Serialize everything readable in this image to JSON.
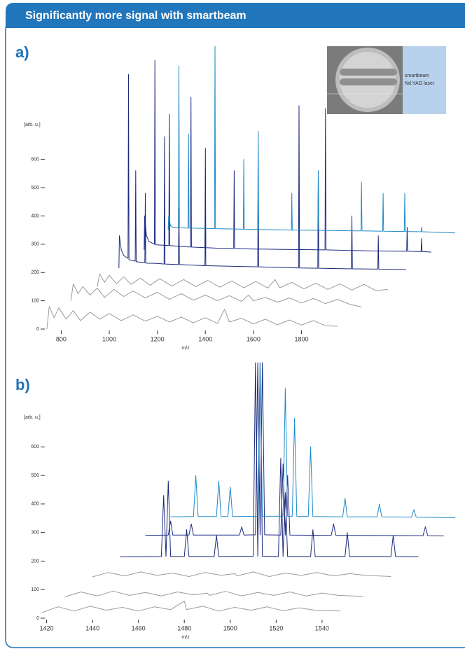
{
  "title": "Significantly more signal with smartbeam",
  "chart_data": [
    {
      "type": "line",
      "label": "a)",
      "ylabel": "[arb. u.]",
      "xlabel": "m/z",
      "inset_labels": [
        "smartbeam",
        "Nd:YAG laser"
      ],
      "xlim": [
        720,
        2440
      ],
      "ylim": [
        0,
        1010
      ],
      "xticks": [
        800,
        1000,
        1200,
        1400,
        1600,
        1800
      ],
      "yticks": [
        0,
        100,
        200,
        300,
        400,
        500,
        600
      ],
      "series": [
        {
          "color": "#9a9a9a",
          "x": [
            740,
            750,
            770,
            790,
            820,
            850,
            880,
            920,
            960,
            1000,
            1050,
            1100,
            1150,
            1200,
            1250,
            1300,
            1350,
            1400,
            1450,
            1480,
            1500,
            1550,
            1600,
            1650,
            1700,
            1750,
            1800,
            1850,
            1900,
            1950
          ],
          "values": [
            0,
            80,
            40,
            75,
            35,
            65,
            30,
            60,
            35,
            55,
            30,
            50,
            28,
            45,
            25,
            42,
            22,
            40,
            20,
            70,
            25,
            38,
            18,
            35,
            15,
            32,
            14,
            30,
            12,
            10
          ]
        },
        {
          "color": "#9a9a9a",
          "x": [
            840,
            850,
            870,
            890,
            920,
            950,
            980,
            1020,
            1060,
            1100,
            1150,
            1200,
            1250,
            1300,
            1350,
            1400,
            1450,
            1500,
            1550,
            1580,
            1600,
            1650,
            1700,
            1750,
            1800,
            1850,
            1900,
            1950,
            2000,
            2050
          ],
          "values": [
            100,
            160,
            125,
            150,
            120,
            145,
            112,
            140,
            115,
            135,
            110,
            130,
            105,
            125,
            102,
            120,
            100,
            118,
            98,
            120,
            100,
            112,
            95,
            110,
            92,
            108,
            90,
            105,
            88,
            78
          ]
        },
        {
          "color": "#9a9a9a",
          "x": [
            950,
            960,
            980,
            1000,
            1030,
            1060,
            1090,
            1130,
            1170,
            1210,
            1260,
            1310,
            1360,
            1410,
            1460,
            1510,
            1560,
            1610,
            1660,
            1690,
            1710,
            1760,
            1810,
            1860,
            1910,
            1960,
            2010,
            2060,
            2110,
            2160
          ],
          "values": [
            150,
            195,
            165,
            190,
            160,
            185,
            158,
            180,
            155,
            178,
            152,
            175,
            150,
            172,
            148,
            170,
            146,
            168,
            145,
            175,
            146,
            165,
            142,
            162,
            140,
            160,
            138,
            158,
            136,
            140
          ]
        },
        {
          "color": "#1b2a7a",
          "x": [
            1040,
            1042,
            1050,
            1060,
            1078,
            1080,
            1082,
            1108,
            1110,
            1112,
            1148,
            1150,
            1152,
            1200,
            1228,
            1230,
            1232,
            1288,
            1290,
            1292,
            1350,
            1398,
            1400,
            1402,
            1500,
            1618,
            1620,
            1622,
            1700,
            1788,
            1790,
            1792,
            1868,
            1870,
            1872,
            1950,
            2008,
            2010,
            2012,
            2118,
            2120,
            2122,
            2200,
            2236
          ],
          "values": [
            215,
            330,
            280,
            260,
            250,
            900,
            245,
            240,
            560,
            238,
            235,
            480,
            233,
            232,
            230,
            680,
            230,
            228,
            430,
            228,
            226,
            224,
            420,
            224,
            222,
            220,
            560,
            220,
            218,
            216,
            790,
            216,
            215,
            540,
            215,
            214,
            213,
            400,
            213,
            212,
            330,
            212,
            211,
            210
          ]
        },
        {
          "color": "#1e2a85",
          "x": [
            1145,
            1147,
            1155,
            1165,
            1188,
            1190,
            1192,
            1248,
            1250,
            1252,
            1300,
            1338,
            1340,
            1342,
            1398,
            1400,
            1402,
            1450,
            1518,
            1520,
            1522,
            1600,
            1700,
            1898,
            1900,
            1902,
            2000,
            2100,
            2238,
            2240,
            2242,
            2298,
            2300,
            2302,
            2340
          ],
          "values": [
            280,
            400,
            330,
            310,
            300,
            950,
            298,
            295,
            760,
            295,
            292,
            290,
            820,
            290,
            288,
            640,
            288,
            286,
            285,
            560,
            285,
            283,
            282,
            280,
            780,
            280,
            278,
            276,
            275,
            360,
            275,
            274,
            320,
            274,
            272
          ]
        },
        {
          "color": "#1f8bc7",
          "x": [
            1245,
            1247,
            1255,
            1265,
            1288,
            1290,
            1292,
            1328,
            1330,
            1332,
            1400,
            1438,
            1440,
            1442,
            1500,
            1558,
            1560,
            1562,
            1618,
            1620,
            1622,
            1700,
            1758,
            1760,
            1762,
            1868,
            1870,
            1872,
            1950,
            2048,
            2050,
            2052,
            2138,
            2140,
            2142,
            2228,
            2230,
            2232,
            2298,
            2300,
            2302,
            2440
          ],
          "values": [
            350,
            400,
            365,
            360,
            358,
            930,
            358,
            357,
            690,
            357,
            356,
            355,
            1000,
            355,
            354,
            353,
            600,
            353,
            352,
            700,
            352,
            351,
            350,
            480,
            350,
            349,
            560,
            349,
            348,
            347,
            520,
            347,
            346,
            480,
            346,
            345,
            480,
            345,
            344,
            360,
            344,
            340
          ]
        }
      ]
    },
    {
      "type": "line",
      "label": "b)",
      "ylabel": "[arb. u.]",
      "xlabel": "m/z",
      "xlim": [
        1418,
        1598
      ],
      "ylim": [
        0,
        895
      ],
      "xticks": [
        1420,
        1440,
        1460,
        1480,
        1500,
        1520,
        1540
      ],
      "yticks": [
        0,
        100,
        200,
        300,
        400,
        500,
        600
      ],
      "series": [
        {
          "color": "#9a9a9a",
          "x": [
            1418,
            1425,
            1432,
            1439,
            1446,
            1453,
            1460,
            1467,
            1474,
            1480,
            1481,
            1488,
            1495,
            1502,
            1509,
            1516,
            1523,
            1530,
            1537,
            1548
          ],
          "values": [
            20,
            40,
            25,
            42,
            28,
            38,
            25,
            40,
            30,
            60,
            30,
            42,
            25,
            38,
            28,
            40,
            26,
            36,
            28,
            25
          ]
        },
        {
          "color": "#9a9a9a",
          "x": [
            1428,
            1435,
            1442,
            1449,
            1456,
            1463,
            1470,
            1477,
            1484,
            1490,
            1491,
            1498,
            1505,
            1512,
            1519,
            1526,
            1533,
            1540,
            1547,
            1558
          ],
          "values": [
            75,
            92,
            78,
            95,
            80,
            90,
            78,
            92,
            82,
            88,
            80,
            94,
            78,
            90,
            80,
            92,
            78,
            88,
            80,
            76
          ]
        },
        {
          "color": "#9a9a9a",
          "x": [
            1440,
            1447,
            1454,
            1461,
            1468,
            1475,
            1482,
            1489,
            1496,
            1502,
            1503,
            1510,
            1517,
            1524,
            1531,
            1538,
            1545,
            1552,
            1559,
            1570
          ],
          "values": [
            145,
            160,
            148,
            162,
            150,
            158,
            146,
            160,
            150,
            156,
            148,
            162,
            146,
            158,
            150,
            160,
            148,
            156,
            150,
            146
          ]
        },
        {
          "color": "#1b2a7a",
          "x": [
            1452,
            1470,
            1471,
            1472,
            1473,
            1474,
            1480,
            1481,
            1482,
            1493,
            1494,
            1495,
            1510,
            1511,
            1512,
            1513,
            1514,
            1521,
            1522,
            1523,
            1524,
            1525,
            1535,
            1536,
            1537,
            1550,
            1551,
            1552,
            1570,
            1571,
            1572,
            1582
          ],
          "values": [
            215,
            216,
            430,
            216,
            480,
            216,
            216,
            310,
            216,
            216,
            290,
            216,
            217,
            895,
            217,
            895,
            217,
            216,
            560,
            216,
            440,
            216,
            216,
            310,
            216,
            216,
            300,
            216,
            216,
            290,
            216,
            215
          ]
        },
        {
          "color": "#1e2a85",
          "x": [
            1463,
            1473,
            1474,
            1475,
            1482,
            1483,
            1484,
            1504,
            1505,
            1506,
            1511,
            1512,
            1513,
            1514,
            1515,
            1522,
            1523,
            1524,
            1525,
            1526,
            1544,
            1545,
            1546,
            1584,
            1585,
            1586,
            1593
          ],
          "values": [
            290,
            291,
            340,
            291,
            291,
            330,
            291,
            291,
            320,
            291,
            292,
            895,
            292,
            895,
            292,
            291,
            540,
            291,
            500,
            291,
            290,
            330,
            290,
            289,
            320,
            289,
            288
          ]
        },
        {
          "color": "#1f8bc7",
          "x": [
            1474,
            1484,
            1485,
            1486,
            1494,
            1495,
            1496,
            1499,
            1500,
            1501,
            1512,
            1513,
            1514,
            1523,
            1524,
            1525,
            1527,
            1528,
            1529,
            1534,
            1535,
            1536,
            1549,
            1550,
            1551,
            1564,
            1565,
            1566,
            1579,
            1580,
            1581,
            1598
          ],
          "values": [
            355,
            356,
            500,
            356,
            356,
            480,
            356,
            356,
            460,
            356,
            357,
            895,
            357,
            357,
            805,
            357,
            357,
            700,
            357,
            356,
            600,
            356,
            355,
            420,
            355,
            355,
            400,
            355,
            354,
            380,
            354,
            352
          ]
        }
      ]
    }
  ]
}
